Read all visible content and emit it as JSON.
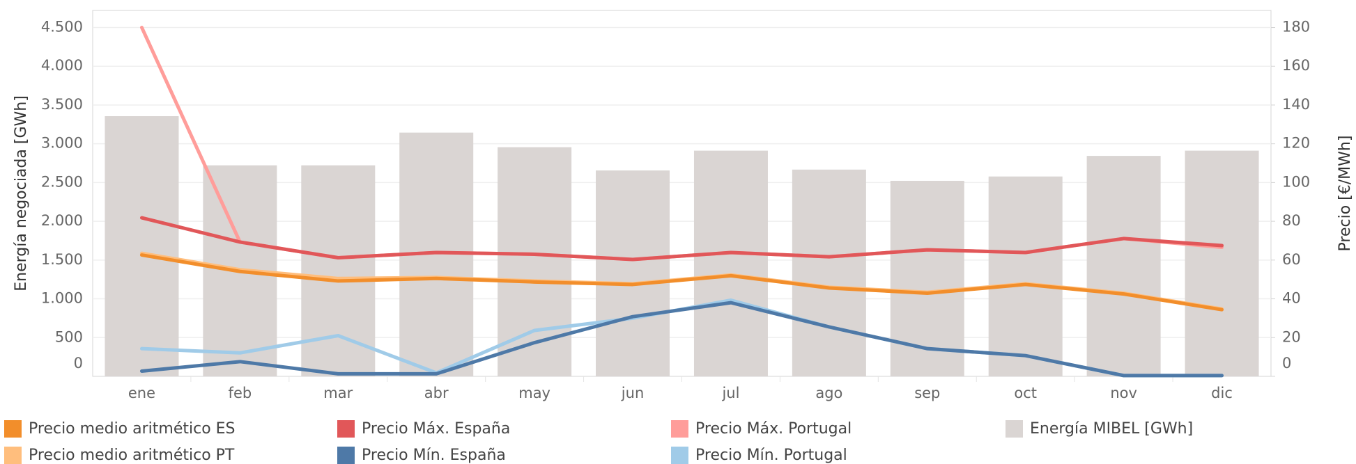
{
  "chart_data": {
    "type": "combo",
    "categories": [
      "ene",
      "feb",
      "mar",
      "abr",
      "may",
      "jun",
      "jul",
      "ago",
      "sep",
      "oct",
      "nov",
      "dic"
    ],
    "ylabel": "Energía negociada [GWh]",
    "y2label": "Precio [€/MWh]",
    "ylim": [
      0,
      4720
    ],
    "yticks": [
      0,
      500,
      {
        "value": 1000,
        "label": "1.000"
      },
      {
        "value": 1500,
        "label": "1.500"
      },
      {
        "value": 2000,
        "label": "2.000"
      },
      {
        "value": 2500,
        "label": "2.500"
      },
      {
        "value": 3000,
        "label": "3.000"
      },
      {
        "value": 3500,
        "label": "3.500"
      },
      {
        "value": 4000,
        "label": "4.000"
      },
      {
        "value": 4500,
        "label": "4.500"
      }
    ],
    "y2lim": [
      0,
      188.8
    ],
    "y2ticks": [
      0,
      20,
      40,
      60,
      80,
      100,
      120,
      140,
      160,
      180
    ],
    "grid": true,
    "legend": "bottom",
    "series": [
      {
        "name": "Precio medio aritmético ES",
        "type": "line",
        "axis": "y2",
        "color": "#f28e2b",
        "values": [
          62.6,
          54.1,
          49.2,
          50.5,
          48.7,
          47.4,
          51.9,
          45.6,
          42.9,
          47.4,
          42.5,
          34.4
        ]
      },
      {
        "name": "Precio medio aritmético PT",
        "type": "line",
        "axis": "y2",
        "color": "#ffbe7d",
        "values": [
          63.5,
          55.0,
          50.5,
          51.0,
          49.2,
          47.8,
          52.3,
          46.0,
          43.4,
          47.8,
          42.9,
          34.8
        ]
      },
      {
        "name": "Precio Máx. España",
        "type": "line",
        "axis": "y2",
        "color": "#e15759",
        "values": [
          81.8,
          69.3,
          61.2,
          63.9,
          63.0,
          60.3,
          63.9,
          61.7,
          65.3,
          63.9,
          71.1,
          67.5
        ]
      },
      {
        "name": "Precio Mín. España",
        "type": "line",
        "axis": "y2",
        "color": "#4e79a7",
        "values": [
          2.7,
          7.6,
          1.3,
          1.3,
          17.4,
          30.8,
          38.0,
          25.5,
          14.3,
          10.7,
          0.4,
          0.4
        ]
      },
      {
        "name": "Precio Máx. Portugal",
        "type": "line",
        "axis": "y2",
        "color": "#ff9d9a",
        "values": [
          180.0,
          69.3,
          61.2,
          63.9,
          63.0,
          60.3,
          63.9,
          61.7,
          65.3,
          63.9,
          71.1,
          66.6
        ]
      },
      {
        "name": "Precio Mín. Portugal",
        "type": "line",
        "axis": "y2",
        "color": "#a0cbe8",
        "values": [
          14.3,
          12.1,
          21.0,
          1.8,
          23.7,
          30.0,
          39.3,
          25.5,
          14.3,
          10.7,
          0.4,
          0.4
        ]
      },
      {
        "name": "Energía MIBEL [GWh]",
        "type": "bar",
        "axis": "y",
        "color": "#dad5d3",
        "values": [
          3356,
          2722,
          2722,
          3144,
          2956,
          2656,
          2911,
          2667,
          2522,
          2578,
          2844,
          2911
        ]
      }
    ]
  }
}
